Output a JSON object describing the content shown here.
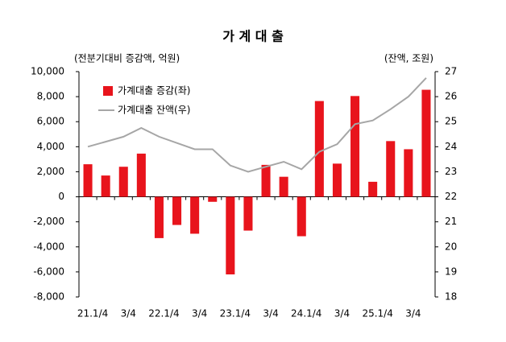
{
  "chart_data": {
    "type": "bar-line",
    "title": "가 계 대 출",
    "y_label": "(전분기대비 증감액, 억원)",
    "y2_label": "(잔액, 조원)",
    "categories": [
      "21.1/4",
      null,
      "3/4",
      null,
      "22.1/4",
      null,
      "3/4",
      null,
      "23.1/4",
      null,
      "3/4",
      null,
      "24.1/4",
      null,
      "3/4",
      null,
      "25.1/4",
      null,
      "3/4",
      null
    ],
    "series": [
      {
        "name": "가계대출 증감(좌)",
        "type": "bar",
        "color": "#e8141c",
        "values": [
          2600,
          1700,
          2400,
          3450,
          -3300,
          -2250,
          -2950,
          -400,
          -6200,
          -2700,
          2550,
          1600,
          -3150,
          7650,
          2650,
          8050,
          1200,
          4450,
          3800,
          8550
        ]
      },
      {
        "name": "가계대출 잔액(우)",
        "type": "line",
        "color": "#a6a6a6",
        "axis": "y2",
        "values": [
          24.0,
          24.2,
          24.4,
          24.75,
          24.4,
          24.15,
          23.9,
          23.9,
          23.25,
          23.0,
          23.2,
          23.4,
          23.1,
          23.8,
          24.1,
          24.9,
          25.05,
          25.5,
          26.0,
          26.75
        ]
      }
    ],
    "ylim": [
      -8000,
      10000
    ],
    "yticks": [
      {
        "value": -8000,
        "label": "-8,000"
      },
      {
        "value": -6000,
        "label": "-6,000"
      },
      {
        "value": -4000,
        "label": "-4,000"
      },
      {
        "value": -2000,
        "label": "-2,000"
      },
      0,
      {
        "value": 2000,
        "label": "2,000"
      },
      {
        "value": 4000,
        "label": "4,000"
      },
      {
        "value": 6000,
        "label": "6,000"
      },
      {
        "value": 8000,
        "label": "8,000"
      },
      {
        "value": 10000,
        "label": "10,000"
      }
    ],
    "y2lim": [
      18,
      27
    ],
    "y2ticks": [
      18,
      19,
      20,
      21,
      22,
      23,
      24,
      25,
      26,
      27
    ],
    "grid": false,
    "legend": "upper left"
  }
}
